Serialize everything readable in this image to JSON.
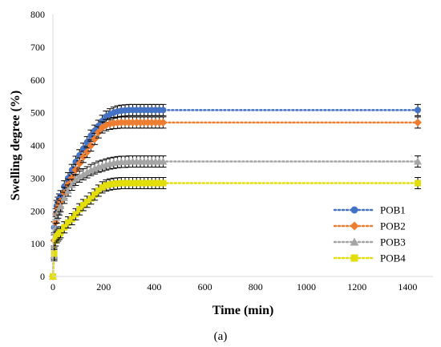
{
  "chart_data": {
    "type": "scatter",
    "xlabel": "Time (min)",
    "ylabel": "Swelling degree (%)",
    "xlim": [
      0,
      1500
    ],
    "ylim": [
      0,
      800
    ],
    "xticks": [
      0,
      200,
      400,
      600,
      800,
      1000,
      1200,
      1400
    ],
    "yticks": [
      0,
      100,
      200,
      300,
      400,
      500,
      600,
      700,
      800
    ],
    "grid": false,
    "legend_position": "right",
    "caption": "(a)",
    "x": [
      0,
      5,
      10,
      15,
      20,
      25,
      30,
      45,
      60,
      75,
      90,
      105,
      120,
      135,
      150,
      165,
      180,
      195,
      210,
      225,
      240,
      255,
      270,
      285,
      300,
      315,
      330,
      345,
      360,
      375,
      390,
      405,
      420,
      435,
      1440
    ],
    "series": [
      {
        "name": "POB1",
        "color": "#4472C4",
        "marker": "circle",
        "values": [
          0,
          150,
          190,
          215,
          225,
          235,
          245,
          275,
          300,
          325,
          350,
          370,
          390,
          410,
          430,
          445,
          460,
          475,
          488,
          495,
          500,
          504,
          506,
          507,
          508,
          508,
          508,
          508,
          508,
          508,
          508,
          508,
          508,
          508,
          508
        ]
      },
      {
        "name": "POB2",
        "color": "#ED7D31",
        "marker": "diamond",
        "values": [
          0,
          110,
          165,
          190,
          210,
          220,
          230,
          255,
          280,
          300,
          325,
          345,
          365,
          380,
          400,
          420,
          440,
          455,
          462,
          466,
          468,
          469,
          470,
          470,
          470,
          470,
          470,
          470,
          470,
          470,
          470,
          470,
          470,
          470,
          470
        ]
      },
      {
        "name": "POB3",
        "color": "#A5A5A5",
        "marker": "triangle",
        "values": [
          0,
          65,
          145,
          180,
          195,
          205,
          215,
          240,
          262,
          280,
          295,
          305,
          312,
          318,
          325,
          330,
          335,
          338,
          342,
          345,
          347,
          349,
          350,
          350,
          351,
          351,
          351,
          351,
          351,
          351,
          351,
          351,
          351,
          351,
          351
        ]
      },
      {
        "name": "POB4",
        "color": "#E3DE0A",
        "marker": "square",
        "values": [
          0,
          70,
          110,
          120,
          125,
          130,
          135,
          150,
          165,
          175,
          190,
          205,
          218,
          228,
          238,
          250,
          262,
          272,
          278,
          281,
          283,
          284,
          285,
          285,
          285,
          285,
          285,
          285,
          285,
          285,
          285,
          285,
          285,
          285,
          285
        ]
      }
    ]
  }
}
